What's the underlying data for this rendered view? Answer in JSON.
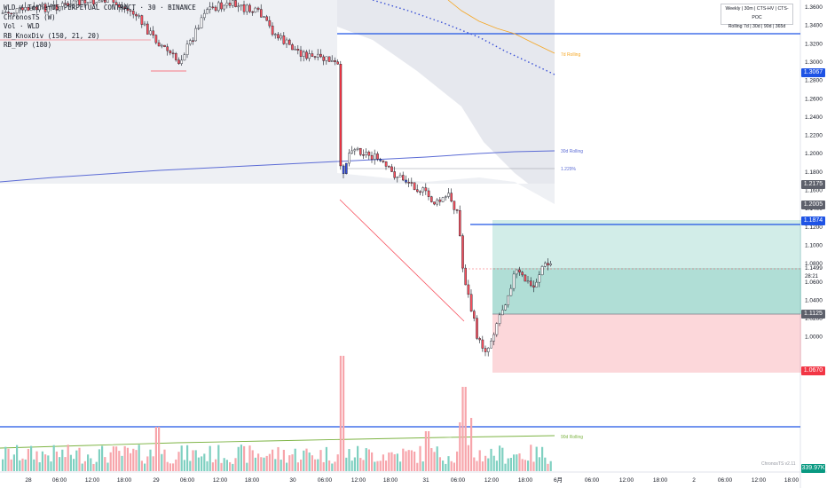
{
  "legend": {
    "symbol": "WLD / TetherUS PERPETUAL CONTRACT · 30 · BINANCE",
    "ind1": "ChronosTS (W)",
    "ind2": "Vol · WLD",
    "ind3": "RB_KnoxDiv (150, 21, 20)",
    "ind4": "RB_MPP (180)"
  },
  "info_box": {
    "row1": "Weekly | 30m | CTS-HV | CTS-POC",
    "row2": "Rolling 7d | 30d | 90d | 365d"
  },
  "line_labels": {
    "rolling_7d": "7d Rolling",
    "rolling_30d": "30d Rolling",
    "rolling_90d": "90d Rolling",
    "pct": "1.229%"
  },
  "price_axis": {
    "ticks": [
      "1.3600",
      "1.3400",
      "1.3200",
      "1.3000",
      "1.2800",
      "1.2600",
      "1.2400",
      "1.2200",
      "1.2000",
      "1.1800",
      "1.1600",
      "1.1400",
      "1.1200",
      "1.1000",
      "1.0800",
      "1.0600",
      "1.0400",
      "1.0200",
      "1.0000"
    ],
    "badges": {
      "b1": "1.3067",
      "b2": "1.2175",
      "b3": "1.2005",
      "b4": "1.1874",
      "b5": "1.1125",
      "b6": "1.0670",
      "vol": "339.97K"
    },
    "current_price": "1.1499",
    "countdown": "28:21"
  },
  "time_axis": [
    "28",
    "06:00",
    "12:00",
    "18:00",
    "29",
    "06:00",
    "12:00",
    "18:00",
    "30",
    "06:00",
    "12:00",
    "18:00",
    "31",
    "06:00",
    "12:00",
    "18:00",
    "6月",
    "06:00",
    "12:00",
    "18:00",
    "2",
    "06:00",
    "12:00",
    "18:00"
  ],
  "watermark": "ChronosTS v2.11",
  "colors": {
    "up": "#ffffff",
    "down": "#f7525f",
    "wick": "#131722",
    "level_line": "#1e53e5",
    "profit_zone": "#089981",
    "loss_zone": "#f23645",
    "cloud": "#e0e3eb",
    "rolling_30d": "#5b6bd5",
    "rolling_7d": "#f5a623",
    "rolling_90d": "#7cb342",
    "poc_dots": "#3950d6"
  }
}
